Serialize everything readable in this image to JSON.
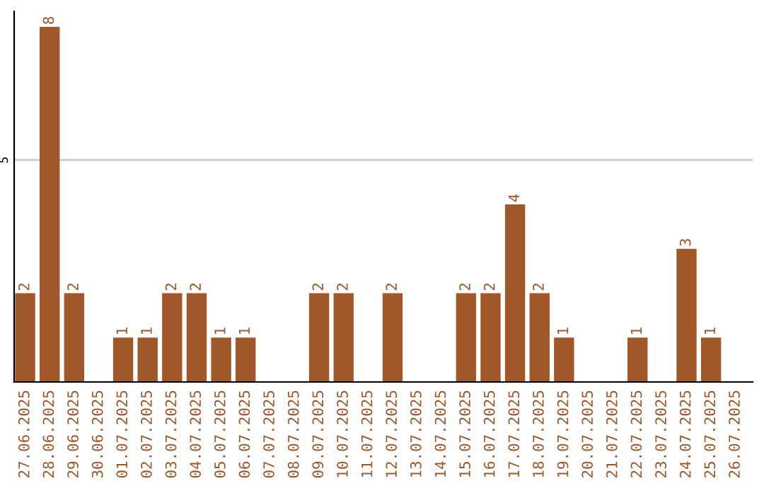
{
  "chart_data": {
    "type": "bar",
    "categories": [
      "27.06.2025",
      "28.06.2025",
      "29.06.2025",
      "30.06.2025",
      "01.07.2025",
      "02.07.2025",
      "03.07.2025",
      "04.07.2025",
      "05.07.2025",
      "06.07.2025",
      "07.07.2025",
      "08.07.2025",
      "09.07.2025",
      "10.07.2025",
      "11.07.2025",
      "12.07.2025",
      "13.07.2025",
      "14.07.2025",
      "15.07.2025",
      "16.07.2025",
      "17.07.2025",
      "18.07.2025",
      "19.07.2025",
      "20.07.2025",
      "21.07.2025",
      "22.07.2025",
      "23.07.2025",
      "24.07.2025",
      "25.07.2025",
      "26.07.2025"
    ],
    "values": [
      2,
      8,
      2,
      0,
      1,
      1,
      2,
      2,
      1,
      1,
      0,
      0,
      2,
      2,
      0,
      2,
      0,
      0,
      2,
      2,
      4,
      2,
      1,
      0,
      0,
      1,
      0,
      3,
      1,
      0
    ],
    "value_labels": [
      "2",
      "8",
      "2",
      null,
      "1",
      "1",
      "2",
      "2",
      "1",
      "1",
      null,
      null,
      "2",
      "2",
      null,
      "2",
      null,
      null,
      "2",
      "2",
      "4",
      "2",
      "1",
      null,
      null,
      "1",
      null,
      "3",
      "1",
      null
    ],
    "color": "#a0582a",
    "ylim": [
      0,
      8.35
    ],
    "yticks": [
      5
    ],
    "grid": "y"
  }
}
